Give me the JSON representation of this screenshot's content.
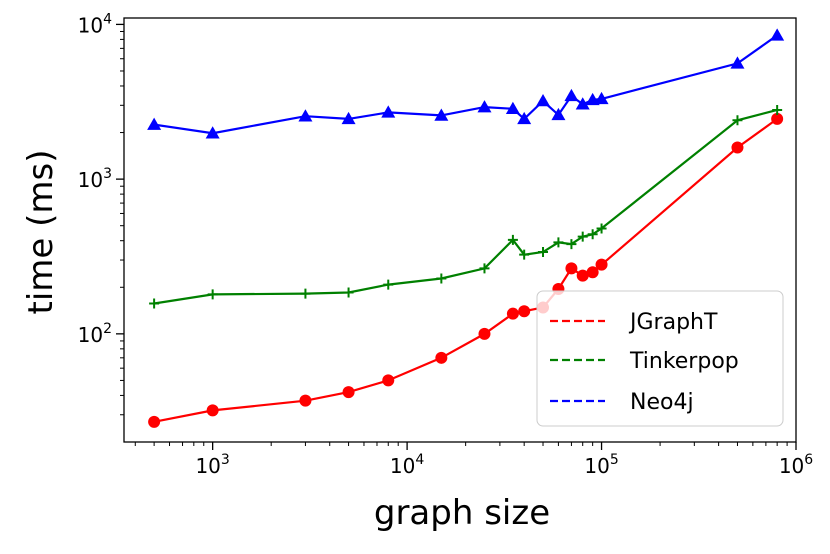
{
  "chart_data": {
    "type": "line",
    "title": "",
    "xlabel": "graph size",
    "ylabel": "time (ms)",
    "xscale": "log",
    "yscale": "log",
    "xlim": [
      350,
      1000000
    ],
    "ylim": [
      20,
      11000
    ],
    "grid": false,
    "legend_position": "lower-right",
    "x_ticks": [
      {
        "value": 1000,
        "base": "10",
        "exp": "3"
      },
      {
        "value": 10000,
        "base": "10",
        "exp": "4"
      },
      {
        "value": 100000,
        "base": "10",
        "exp": "5"
      },
      {
        "value": 1000000,
        "base": "10",
        "exp": "6"
      }
    ],
    "y_ticks": [
      {
        "value": 100,
        "base": "10",
        "exp": "2"
      },
      {
        "value": 1000,
        "base": "10",
        "exp": "3"
      },
      {
        "value": 10000,
        "base": "10",
        "exp": "4"
      }
    ],
    "series": [
      {
        "name": "JGraphT",
        "color": "#ff0000",
        "marker": "circle",
        "x": [
          500,
          1000,
          3000,
          5000,
          8000,
          15000,
          25000,
          35000,
          40000,
          50000,
          60000,
          70000,
          80000,
          90000,
          100000,
          500000,
          800000
        ],
        "y": [
          27,
          32,
          37,
          42,
          50,
          70,
          100,
          135,
          140,
          148,
          195,
          265,
          238,
          250,
          280,
          1600,
          2450
        ]
      },
      {
        "name": "Tinkerpop",
        "color": "#008000",
        "marker": "plus",
        "x": [
          500,
          1000,
          3000,
          5000,
          8000,
          15000,
          25000,
          35000,
          40000,
          50000,
          60000,
          70000,
          80000,
          90000,
          100000,
          500000,
          800000
        ],
        "y": [
          157,
          180,
          182,
          185,
          208,
          228,
          265,
          405,
          325,
          338,
          390,
          380,
          425,
          440,
          480,
          2400,
          2800
        ]
      },
      {
        "name": "Neo4j",
        "color": "#0000ff",
        "marker": "triangle",
        "x": [
          500,
          1000,
          3000,
          5000,
          8000,
          15000,
          25000,
          35000,
          40000,
          50000,
          60000,
          70000,
          80000,
          90000,
          100000,
          500000,
          800000
        ],
        "y": [
          2250,
          1980,
          2550,
          2450,
          2700,
          2580,
          2920,
          2850,
          2450,
          3200,
          2600,
          3450,
          3050,
          3250,
          3300,
          5600,
          8500
        ]
      }
    ]
  }
}
